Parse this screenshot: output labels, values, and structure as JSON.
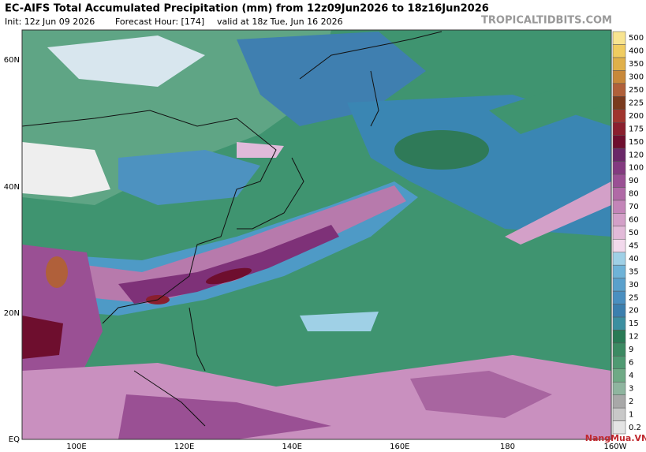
{
  "header": {
    "title": "EC-AIFS Total Accumulated Precipitation (mm) from 12z09Jun2026 to 18z16Jun2026",
    "init": "Init: 12z Jun 09 2026",
    "forecast_hour": "Forecast Hour: [174]",
    "valid": "valid at 18z Tue, Jun 16 2026",
    "source": "TROPICALTIDBITS.COM"
  },
  "map": {
    "lat_labels": [
      "60N",
      "40N",
      "20N",
      "EQ"
    ],
    "lon_labels": [
      "100E",
      "120E",
      "140E",
      "160E",
      "180",
      "160W"
    ]
  },
  "colorbar": {
    "levels": [
      0.2,
      1,
      2,
      3,
      4,
      6,
      9,
      12,
      15,
      20,
      25,
      30,
      35,
      40,
      45,
      50,
      60,
      70,
      80,
      90,
      100,
      120,
      150,
      175,
      200,
      225,
      250,
      300,
      350,
      400,
      500
    ],
    "colors": [
      "#e4e4e4",
      "#c8c8c8",
      "#a8a8a8",
      "#8fb59f",
      "#6faa85",
      "#4f9a72",
      "#3c8a62",
      "#2a7a55",
      "#3c8fa0",
      "#3c7fae",
      "#4a8fc0",
      "#5aa0cc",
      "#6fb3d8",
      "#9fd0e6",
      "#f2d9ec",
      "#e2bad8",
      "#d3a0c8",
      "#c385b8",
      "#b06aa6",
      "#9a5094",
      "#833a80",
      "#6a2868",
      "#6e0e2e",
      "#8a1f2e",
      "#a0352e",
      "#7a3a1e",
      "#b0603a",
      "#c8883a",
      "#e0b04a",
      "#f0cc60",
      "#f8e490"
    ]
  },
  "logo": "NangMua.VN"
}
